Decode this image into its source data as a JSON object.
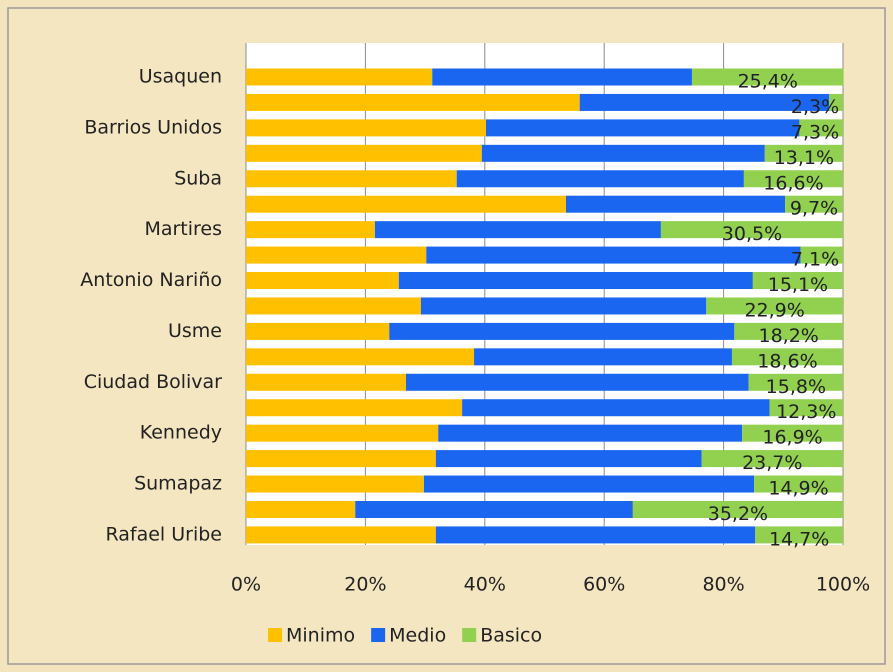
{
  "chart_data": {
    "type": "stacked_barh",
    "categories": [
      "Usaquen",
      null,
      "Barrios Unidos",
      null,
      "Suba",
      null,
      "Martires",
      null,
      "Antonio Nariño",
      null,
      "Usme",
      null,
      "Ciudad Bolivar",
      null,
      "Kennedy",
      null,
      "Sumapaz",
      null,
      "Rafael Uribe"
    ],
    "series": [
      {
        "name": "Minimo",
        "color": "#ffc000",
        "values": [
          31.2,
          55.9,
          40.2,
          39.5,
          35.3,
          53.6,
          21.6,
          30.2,
          25.6,
          29.3,
          24.0,
          38.2,
          26.8,
          36.2,
          32.2,
          31.8,
          29.8,
          18.3,
          31.8
        ]
      },
      {
        "name": "Medio",
        "color": "#1a66f0",
        "values": [
          43.5,
          41.8,
          52.5,
          47.4,
          48.1,
          36.7,
          47.9,
          62.7,
          59.3,
          47.8,
          57.8,
          43.2,
          57.4,
          51.5,
          50.9,
          44.5,
          55.3,
          46.5,
          53.5
        ]
      },
      {
        "name": "Basico",
        "color": "#92d050",
        "values": [
          25.4,
          2.3,
          7.3,
          13.1,
          16.6,
          9.7,
          30.5,
          7.1,
          15.1,
          22.9,
          18.2,
          18.6,
          15.8,
          12.3,
          16.9,
          23.7,
          14.9,
          35.2,
          14.7
        ],
        "value_labels": [
          "25,4%",
          "2,3%",
          "7,3%",
          "13,1%",
          "16,6%",
          "9,7%",
          "30,5%",
          "7,1%",
          "15,1%",
          "22,9%",
          "18,2%",
          "18,6%",
          "15,8%",
          "12,3%",
          "16,9%",
          "23,7%",
          "14,9%",
          "35,2%",
          "14,7%"
        ]
      }
    ],
    "xlim": [
      0,
      100
    ],
    "xticks": [
      {
        "value": 0,
        "label": "0%"
      },
      {
        "value": 20,
        "label": "20%"
      },
      {
        "value": 40,
        "label": "40%"
      },
      {
        "value": 60,
        "label": "60%"
      },
      {
        "value": 80,
        "label": "80%"
      },
      {
        "value": 100,
        "label": "100%"
      }
    ],
    "grid": true,
    "legend": "bottom"
  }
}
